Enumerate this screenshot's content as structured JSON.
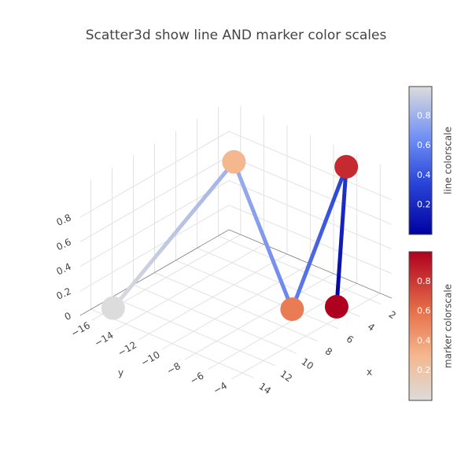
{
  "chart_data": {
    "type": "scatter3d",
    "title": "Scatter3d show line AND marker color scales",
    "x": [
      13,
      6,
      6,
      2,
      4
    ],
    "y": [
      -16,
      -12,
      -7,
      -6,
      -5
    ],
    "z": [
      0,
      1,
      0,
      1,
      0
    ],
    "marker_color": [
      0,
      0.3,
      0.55,
      0.85,
      1
    ],
    "line_color": [
      1,
      0.8,
      0.6,
      0.3,
      0
    ],
    "xlim": [
      1,
      15
    ],
    "ylim": [
      -17,
      -3
    ],
    "zlim": [
      0,
      1.05
    ],
    "xticks": [
      2,
      4,
      6,
      8,
      10,
      12,
      14
    ],
    "yticks": [
      {
        "value": -16,
        "label": "−16"
      },
      {
        "value": -14,
        "label": "−14"
      },
      {
        "value": -12,
        "label": "−12"
      },
      {
        "value": -10,
        "label": "−10"
      },
      {
        "value": -8,
        "label": "−8"
      },
      {
        "value": -6,
        "label": "−6"
      },
      {
        "value": -4,
        "label": "−4"
      }
    ],
    "zticks": [
      0,
      0.2,
      0.4,
      0.6,
      0.8
    ],
    "xlabel": "x",
    "ylabel": "y",
    "line_colorbar": {
      "title": "line colorscale",
      "cmin": 0,
      "cmax": 1,
      "ticks": [
        0.2,
        0.4,
        0.6,
        0.8
      ],
      "colorscale": [
        [
          0,
          "#0000a0"
        ],
        [
          0.35,
          "#2a46d8"
        ],
        [
          0.65,
          "#6f8ff5"
        ],
        [
          1,
          "#dcdcdc"
        ]
      ]
    },
    "marker_colorbar": {
      "title": "marker colorscale",
      "cmin": 0,
      "cmax": 1,
      "ticks": [
        0.2,
        0.4,
        0.6,
        0.8
      ],
      "colorscale": [
        [
          0,
          "#dcdcdc"
        ],
        [
          0.3,
          "#f5b78e"
        ],
        [
          0.6,
          "#e6704a"
        ],
        [
          1,
          "#b0001f"
        ]
      ]
    }
  }
}
